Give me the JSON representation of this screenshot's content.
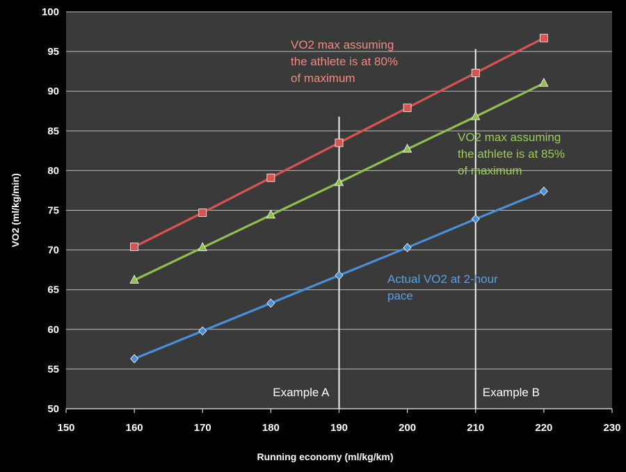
{
  "chart_data": {
    "type": "line",
    "title": "",
    "xlabel": "Running economy (ml/kg/km)",
    "ylabel": "VO2 (ml/kg/min)",
    "xlim": [
      150,
      230
    ],
    "ylim": [
      50,
      100
    ],
    "x_ticks": [
      "150",
      "160",
      "170",
      "180",
      "190",
      "200",
      "210",
      "220",
      "230"
    ],
    "y_ticks": [
      "50",
      "55",
      "60",
      "65",
      "70",
      "75",
      "80",
      "85",
      "90",
      "95",
      "100"
    ],
    "grid": "horizontal",
    "background": "#3a3a3a",
    "x": [
      160,
      170,
      180,
      190,
      200,
      210,
      220
    ],
    "series": [
      {
        "name": "VO2 max assuming the athlete is at 80% of maximum",
        "color": "#d9534f",
        "marker": "square",
        "values": [
          70.4,
          74.7,
          79.1,
          83.5,
          87.9,
          92.3,
          96.7
        ]
      },
      {
        "name": "VO2 max assuming the athlete is at 85% of maximum",
        "color": "#8fc04e",
        "marker": "triangle",
        "values": [
          66.2,
          70.3,
          74.4,
          78.5,
          82.7,
          86.8,
          91.0
        ]
      },
      {
        "name": "Actual VO2 at 2-hour pace",
        "color": "#4a90d9",
        "marker": "diamond",
        "values": [
          56.3,
          59.8,
          63.3,
          66.8,
          70.3,
          73.9,
          77.4
        ]
      }
    ],
    "vlines": [
      {
        "x": 190,
        "label": "Example A",
        "y_top": 86.8
      },
      {
        "x": 210,
        "label": "Example B",
        "y_top": 95.3
      }
    ],
    "annotations": [
      {
        "lines": [
          "VO2 max assuming",
          "the athlete is at 80%",
          "of maximum"
        ],
        "color": "#f08a82"
      },
      {
        "lines": [
          "VO2 max assuming",
          "the athlete is at 85%",
          "of maximum"
        ],
        "color": "#9ccc5a"
      },
      {
        "lines": [
          "Actual VO2 at 2-hour",
          "pace"
        ],
        "color": "#5aa0e6"
      }
    ]
  }
}
